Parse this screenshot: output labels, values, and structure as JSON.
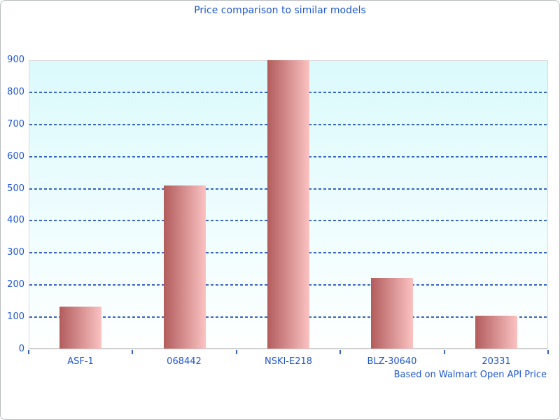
{
  "chart_data": {
    "type": "bar",
    "title": "Price comparison to similar models",
    "categories": [
      "ASF-1",
      "068442",
      "NSKI-E218",
      "BLZ-30640",
      "20331"
    ],
    "values": [
      130,
      507,
      897,
      220,
      102
    ],
    "xlabel": "",
    "ylabel": "",
    "ylim": [
      0,
      900
    ],
    "yticks": [
      0,
      100,
      200,
      300,
      400,
      500,
      600,
      700,
      800,
      900
    ],
    "grid": "horizontal dashed gridlines, drawn behind bars",
    "legend": "none",
    "annotation": "Based on Walmart Open API Price"
  },
  "colors": {
    "text_blue": "#1f57cf",
    "grid_blue": "#3565c8",
    "bar_gradient_left": "#b25c5c",
    "bar_gradient_right": "#fbc2c2",
    "plot_bg_top": "#dbfafc",
    "plot_bg_bottom": "#feffff",
    "plot_border": "#dadada",
    "canvas_border": "#b9bdbf"
  }
}
